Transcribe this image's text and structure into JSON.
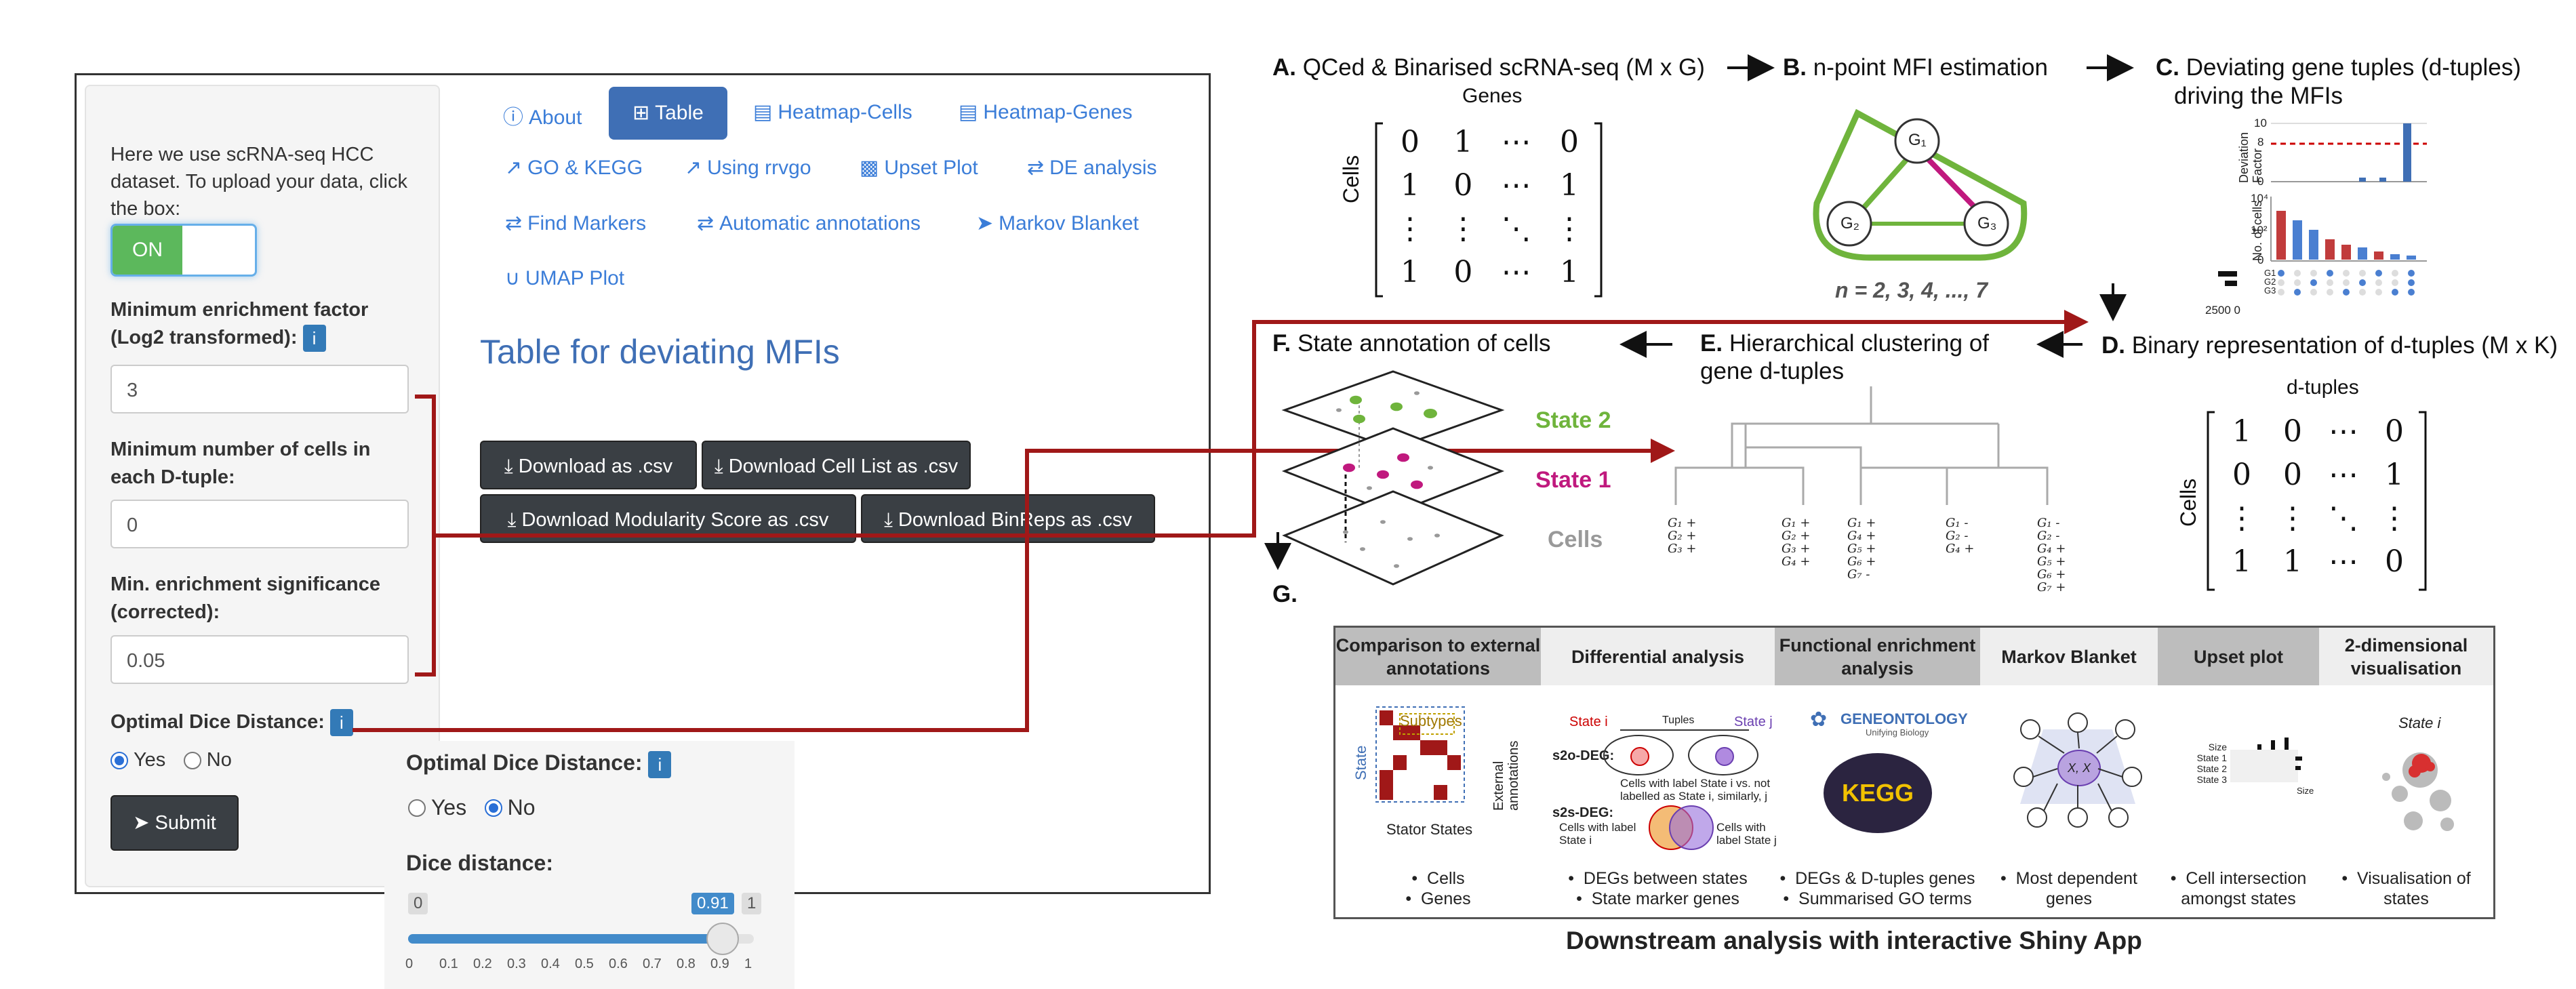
{
  "app": {
    "intro_text": "Here we use scRNA-seq HCC dataset. To upload your data, click the box:",
    "toggle_label": "ON",
    "min_enrichment_label": "Minimum enrichment factor (Log2 transformed):",
    "min_enrichment_value": "3",
    "min_cells_label": "Minimum number of cells in each D-tuple:",
    "min_cells_value": "0",
    "min_significance_label": "Min. enrichment significance (corrected):",
    "min_significance_value": "0.05",
    "dice_label": "Optimal Dice Distance:",
    "info_icon": "i",
    "yes": "Yes",
    "no": "No",
    "submit": "Submit",
    "tabs": [
      "About",
      "Table",
      "Heatmap-Cells",
      "Heatmap-Genes",
      "GO & KEGG",
      "Using rrvgo",
      "Upset Plot",
      "DE analysis",
      "Find Markers",
      "Automatic annotations",
      "Markov Blanket",
      "UMAP Plot"
    ],
    "table_title": "Table for deviating MFIs",
    "download_buttons": [
      "Download as .csv",
      "Download Cell List as .csv",
      "Download Modularity Score as .csv",
      "Download BinReps as .csv"
    ]
  },
  "popup": {
    "dice_label": "Optimal Dice Distance:",
    "yes": "Yes",
    "no": "No",
    "selected": "No",
    "dice_distance_label": "Dice distance:",
    "min": "0",
    "max": "1",
    "value": 0.91,
    "value_label": "0.91",
    "ticks": [
      "0",
      "0.1",
      "0.2",
      "0.3",
      "0.4",
      "0.5",
      "0.6",
      "0.7",
      "0.8",
      "0.9",
      "1"
    ]
  },
  "diagram": {
    "a": {
      "letter": "A.",
      "title": "QCed & Binarised scRNA-seq (M x G)",
      "cols_label": "Genes",
      "rows_label": "Cells"
    },
    "b": {
      "letter": "B.",
      "title": "n-point MFI estimation",
      "nodes": [
        "G₁",
        "G₂",
        "G₃"
      ],
      "n_text": "n = 2, 3, 4, ..., 7"
    },
    "c": {
      "letter": "C.",
      "title_line1": "Deviating gene tuples (d-tuples)",
      "title_line2": "driving the MFIs",
      "ylabel_top": "Deviation Factor",
      "ylabel_bottom": "No. of cells",
      "top_ticks": [
        "10",
        "8",
        "0"
      ],
      "bottom_ticks": [
        "10⁴",
        "10²",
        "0"
      ],
      "bar_axis": "2500  0",
      "rows": [
        "G1",
        "G2",
        "G3"
      ]
    },
    "d": {
      "letter": "D.",
      "title": "Binary representation of d-tuples (M x K)",
      "cols_label": "d-tuples",
      "rows_label": "Cells"
    },
    "e": {
      "letter": "E.",
      "title_line1": "Hierarchical clustering of",
      "title_line2": "gene d-tuples",
      "leaves": [
        [
          "G₁ +",
          "G₂ +",
          "G₃ +"
        ],
        [
          "G₁ +",
          "G₂ +",
          "G₃ +",
          "G₄ +"
        ],
        [
          "G₁ +",
          "G₄ +",
          "G₅ +",
          "G₆ +",
          "G₇ -"
        ],
        [
          "G₁ -",
          "G₂ -",
          "G₄ +"
        ],
        [
          "G₁ -",
          "G₂ -",
          "G₄ +",
          "G₅ +",
          "G₆ +",
          "G₇ +"
        ]
      ]
    },
    "f": {
      "letter": "F.",
      "title": "State annotation of cells",
      "layers": [
        "State 2",
        "State 1",
        "Cells"
      ]
    },
    "g": {
      "letter": "G."
    },
    "matrix_a": [
      [
        "0",
        "1",
        "⋯",
        "0"
      ],
      [
        "1",
        "0",
        "⋯",
        "1"
      ],
      [
        "⋮",
        "⋮",
        "⋱",
        "⋮"
      ],
      [
        "1",
        "0",
        "⋯",
        "1"
      ]
    ],
    "matrix_d": [
      [
        "1",
        "0",
        "⋯",
        "0"
      ],
      [
        "0",
        "0",
        "⋯",
        "1"
      ],
      [
        "⋮",
        "⋮",
        "⋱",
        "⋮"
      ],
      [
        "1",
        "1",
        "⋯",
        "0"
      ]
    ]
  },
  "downstream": {
    "headers": [
      "Comparison to external annotations",
      "Differential analysis",
      "Functional enrichment analysis",
      "Markov Blanket",
      "Upset plot",
      "2-dimensional visualisation"
    ],
    "footers": [
      [
        "Cells",
        "Genes"
      ],
      [
        "DEGs between states",
        "State marker genes"
      ],
      [
        "DEGs & D-tuples genes",
        "Summarised GO terms"
      ],
      [
        "Most dependent genes"
      ],
      [
        "Cell intersection amongst states"
      ],
      [
        "Visualisation of states"
      ]
    ],
    "stator_label": "Stator States",
    "subtypes": "Subtypes",
    "state_axis": "State",
    "external": "External annotations",
    "state_i": "State i",
    "state_j": "State j",
    "tuples": "Tuples",
    "s2o_label": "s2o-DEG:",
    "s2o_text": "Cells with label State i vs. not labelled as State i, similarly, j",
    "s2s_label": "s2s-DEG:",
    "s2s_left": "Cells with label State i",
    "s2s_right": "Cells with label State j",
    "go_text": "GENEONTOLOGY",
    "go_sub": "Unifying Biology",
    "kegg_text": "KEGG",
    "mb_center": "X, X",
    "upset_rows": [
      "Size",
      "State 1",
      "State 2",
      "State 3"
    ],
    "upset_size": "Size",
    "umap_label": "State i",
    "caption": "Downstream analysis with interactive Shiny App"
  },
  "colors": {
    "accent": "#3f6fb5",
    "arrow_red": "#a01818",
    "green": "#6fb43c",
    "magenta": "#c0197e"
  }
}
